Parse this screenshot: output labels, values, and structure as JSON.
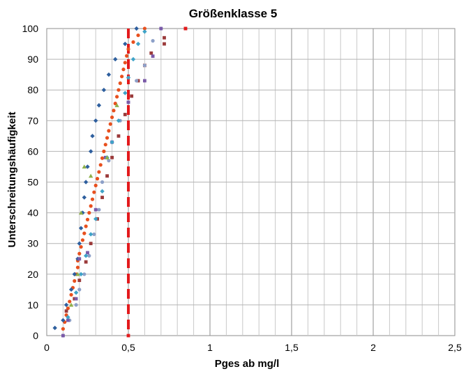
{
  "chart_data": {
    "type": "scatter",
    "title": "Größenklasse 5",
    "xlabel": "Pges ab mg/l",
    "ylabel": "Unterschreitungshäufigkeit",
    "xlim": [
      0,
      2.5
    ],
    "ylim": [
      0,
      100
    ],
    "x_ticks": [
      {
        "value": 0,
        "label": "0"
      },
      {
        "value": 0.5,
        "label": "0,5"
      },
      {
        "value": 1,
        "label": "1"
      },
      {
        "value": 1.5,
        "label": "1,5"
      },
      {
        "value": 2,
        "label": "2"
      },
      {
        "value": 2.5,
        "label": "2,5"
      }
    ],
    "y_ticks": [
      {
        "value": 0,
        "label": "0"
      },
      {
        "value": 10,
        "label": "10"
      },
      {
        "value": 20,
        "label": "20"
      },
      {
        "value": 30,
        "label": "30"
      },
      {
        "value": 40,
        "label": "40"
      },
      {
        "value": 50,
        "label": "50"
      },
      {
        "value": 60,
        "label": "60"
      },
      {
        "value": 70,
        "label": "70"
      },
      {
        "value": 80,
        "label": "80"
      },
      {
        "value": 90,
        "label": "90"
      },
      {
        "value": 100,
        "label": "100"
      }
    ],
    "grid": true,
    "grid_minor_x_step": 0.1,
    "grid_major_x_step": 0.5,
    "grid_y_step": 10,
    "reference_line": {
      "x": 0.5,
      "color": "#e31a1c",
      "style": "dashed"
    },
    "series": [
      {
        "color": "#e8501e",
        "marker": "circle",
        "points": [
          [
            0.1,
            2.2
          ],
          [
            0.11,
            4.4
          ],
          [
            0.12,
            6.7
          ],
          [
            0.13,
            8.9
          ],
          [
            0.14,
            11.1
          ],
          [
            0.15,
            13.3
          ],
          [
            0.16,
            15.6
          ],
          [
            0.17,
            17.8
          ],
          [
            0.18,
            20
          ],
          [
            0.19,
            22.2
          ],
          [
            0.19,
            24.4
          ],
          [
            0.2,
            26.7
          ],
          [
            0.21,
            28.9
          ],
          [
            0.22,
            31.1
          ],
          [
            0.23,
            33.3
          ],
          [
            0.24,
            35.6
          ],
          [
            0.25,
            37.8
          ],
          [
            0.26,
            40
          ],
          [
            0.27,
            42.2
          ],
          [
            0.28,
            44.4
          ],
          [
            0.29,
            46.7
          ],
          [
            0.3,
            48.9
          ],
          [
            0.31,
            51.1
          ],
          [
            0.32,
            53.3
          ],
          [
            0.33,
            55.6
          ],
          [
            0.34,
            57.8
          ],
          [
            0.35,
            60
          ],
          [
            0.36,
            62.2
          ],
          [
            0.37,
            64.4
          ],
          [
            0.38,
            66.7
          ],
          [
            0.39,
            68.9
          ],
          [
            0.4,
            71.1
          ],
          [
            0.41,
            73.3
          ],
          [
            0.42,
            75.6
          ],
          [
            0.43,
            77.8
          ],
          [
            0.44,
            80
          ],
          [
            0.45,
            82.2
          ],
          [
            0.46,
            84.4
          ],
          [
            0.47,
            86.7
          ],
          [
            0.48,
            88.9
          ],
          [
            0.49,
            91.1
          ],
          [
            0.5,
            93.3
          ],
          [
            0.53,
            95.6
          ],
          [
            0.56,
            97.8
          ],
          [
            0.6,
            100
          ]
        ]
      },
      {
        "color": "#2e5f9e",
        "marker": "diamond",
        "points": [
          [
            0.05,
            2.5
          ],
          [
            0.1,
            5
          ],
          [
            0.12,
            10
          ],
          [
            0.15,
            15
          ],
          [
            0.17,
            20
          ],
          [
            0.19,
            25
          ],
          [
            0.2,
            30
          ],
          [
            0.21,
            35
          ],
          [
            0.22,
            40
          ],
          [
            0.23,
            45
          ],
          [
            0.24,
            50
          ],
          [
            0.25,
            55
          ],
          [
            0.27,
            60
          ],
          [
            0.28,
            65
          ],
          [
            0.3,
            70
          ],
          [
            0.32,
            75
          ],
          [
            0.35,
            80
          ],
          [
            0.38,
            85
          ],
          [
            0.42,
            90
          ],
          [
            0.48,
            95
          ],
          [
            0.55,
            100
          ]
        ]
      },
      {
        "color": "#9b3a3a",
        "marker": "square",
        "points": [
          [
            0.12,
            8
          ],
          [
            0.17,
            12
          ],
          [
            0.2,
            18
          ],
          [
            0.24,
            24
          ],
          [
            0.27,
            30
          ],
          [
            0.31,
            38
          ],
          [
            0.34,
            45
          ],
          [
            0.37,
            52
          ],
          [
            0.4,
            58
          ],
          [
            0.44,
            65
          ],
          [
            0.48,
            72
          ],
          [
            0.52,
            78
          ],
          [
            0.56,
            83
          ],
          [
            0.6,
            88
          ],
          [
            0.64,
            92
          ],
          [
            0.72,
            95
          ],
          [
            0.72,
            97
          ],
          [
            0.85,
            100
          ]
        ]
      },
      {
        "color": "#8da0c8",
        "marker": "circle",
        "points": [
          [
            0.1,
            0
          ],
          [
            0.14,
            5
          ],
          [
            0.18,
            10
          ],
          [
            0.2,
            15
          ],
          [
            0.23,
            20
          ],
          [
            0.26,
            26
          ],
          [
            0.29,
            33
          ],
          [
            0.32,
            41
          ],
          [
            0.34,
            50
          ],
          [
            0.38,
            57
          ],
          [
            0.4,
            63
          ],
          [
            0.45,
            70
          ],
          [
            0.5,
            76
          ],
          [
            0.55,
            83
          ],
          [
            0.6,
            88
          ],
          [
            0.65,
            96
          ],
          [
            0.7,
            100
          ]
        ]
      },
      {
        "color": "#7a5aa8",
        "marker": "square",
        "points": [
          [
            0.1,
            0
          ],
          [
            0.13,
            5
          ],
          [
            0.18,
            12
          ],
          [
            0.2,
            25
          ],
          [
            0.25,
            27
          ],
          [
            0.3,
            41
          ],
          [
            0.36,
            58
          ],
          [
            0.4,
            63
          ],
          [
            0.5,
            76
          ],
          [
            0.6,
            83
          ],
          [
            0.65,
            91
          ],
          [
            0.7,
            100
          ]
        ]
      },
      {
        "color": "#3ea3c8",
        "marker": "diamond",
        "points": [
          [
            0.13,
            6
          ],
          [
            0.18,
            14
          ],
          [
            0.21,
            20
          ],
          [
            0.24,
            26
          ],
          [
            0.27,
            33
          ],
          [
            0.3,
            38
          ],
          [
            0.34,
            47
          ],
          [
            0.37,
            58
          ],
          [
            0.4,
            63
          ],
          [
            0.44,
            70
          ],
          [
            0.48,
            79
          ],
          [
            0.5,
            84
          ],
          [
            0.53,
            90
          ],
          [
            0.56,
            95
          ],
          [
            0.6,
            99
          ]
        ]
      },
      {
        "color": "#8fb04a",
        "marker": "triangle",
        "points": [
          [
            0.15,
            10
          ],
          [
            0.19,
            20
          ],
          [
            0.21,
            40
          ],
          [
            0.23,
            55
          ],
          [
            0.27,
            52
          ],
          [
            0.37,
            58
          ],
          [
            0.43,
            75
          ]
        ]
      },
      {
        "color": "#e31a1c",
        "marker": "square",
        "points": [
          [
            0.5,
            0
          ],
          [
            0.85,
            100
          ]
        ]
      }
    ]
  }
}
